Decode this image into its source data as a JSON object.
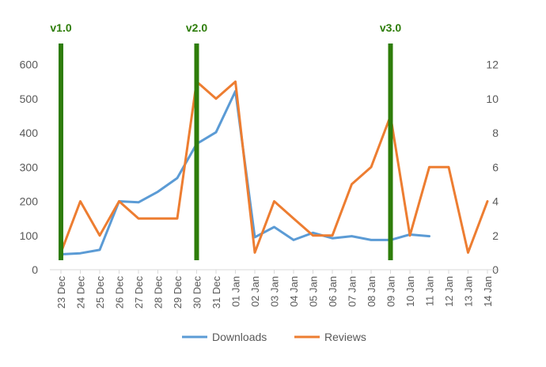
{
  "chart_data": {
    "type": "line",
    "categories": [
      "23 Dec",
      "24 Dec",
      "25 Dec",
      "26 Dec",
      "27 Dec",
      "28 Dec",
      "29 Dec",
      "30 Dec",
      "31 Dec",
      "01 Jan",
      "02 Jan",
      "03 Jan",
      "04 Jan",
      "05 Jan",
      "06 Jan",
      "07 Jan",
      "08 Jan",
      "09 Jan",
      "10 Jan",
      "11 Jan",
      "12 Jan",
      "13 Jan",
      "14 Jan"
    ],
    "series": [
      {
        "name": "Downloads",
        "axis": "left",
        "color": "#5B9BD5",
        "values": [
          45,
          48,
          58,
          200,
          197,
          228,
          268,
          368,
          402,
          522,
          95,
          125,
          87,
          108,
          92,
          98,
          87,
          87,
          103,
          98,
          null,
          null,
          null
        ]
      },
      {
        "name": "Reviews",
        "axis": "right",
        "color": "#ED7D31",
        "values": [
          1,
          4,
          2,
          4,
          3,
          3,
          3,
          11,
          10,
          11,
          1,
          4,
          3,
          2,
          2,
          5,
          6,
          9,
          2,
          6,
          6,
          1,
          4
        ]
      }
    ],
    "y_left": {
      "min": 0,
      "max": 650,
      "ticks": [
        0,
        100,
        200,
        300,
        400,
        500,
        600
      ]
    },
    "y_right": {
      "min": 0,
      "max": 13,
      "ticks": [
        0,
        2,
        4,
        6,
        8,
        10,
        12
      ]
    },
    "version_markers": [
      {
        "label": "v1.0",
        "category": "23 Dec"
      },
      {
        "label": "v2.0",
        "category": "30 Dec"
      },
      {
        "label": "v3.0",
        "category": "09 Jan"
      }
    ],
    "marker_color": "#2E7D0A",
    "grid": false,
    "legend": "bottom"
  }
}
